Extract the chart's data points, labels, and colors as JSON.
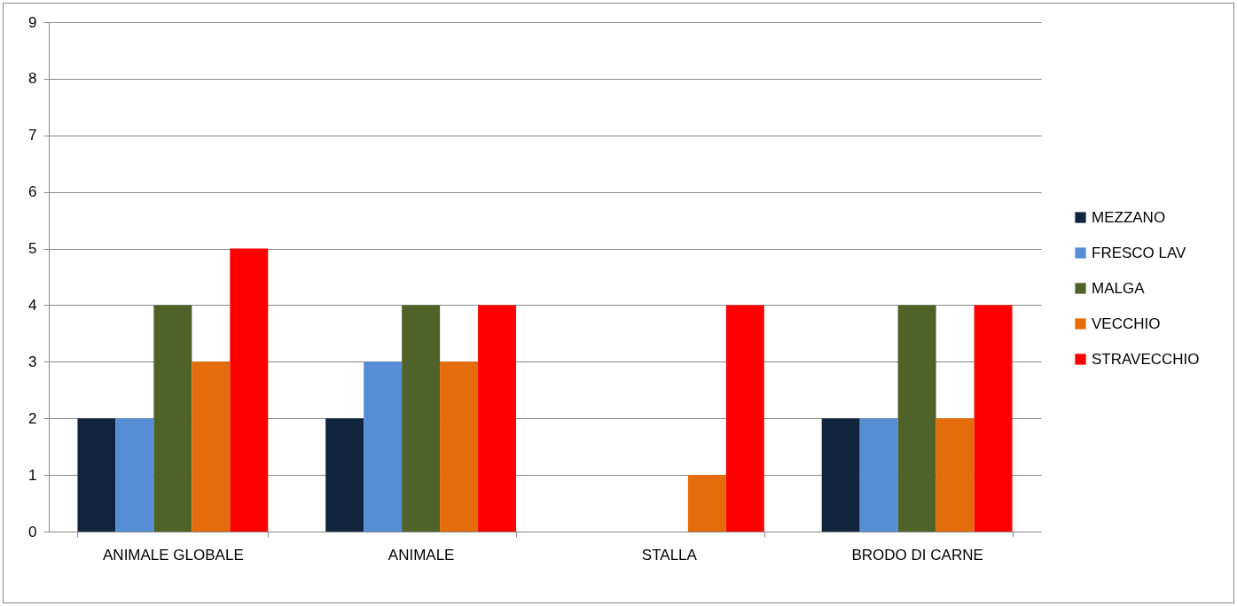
{
  "chart_data": {
    "type": "bar",
    "categories": [
      "ANIMALE GLOBALE",
      "ANIMALE",
      "STALLA",
      "BRODO DI CARNE"
    ],
    "series": [
      {
        "name": "MEZZANO",
        "color": "#10243e",
        "values": [
          2,
          2,
          0,
          2
        ]
      },
      {
        "name": "FRESCO LAV",
        "color": "#558ed5",
        "values": [
          2,
          3,
          0,
          2
        ]
      },
      {
        "name": "MALGA",
        "color": "#4f6228",
        "values": [
          4,
          4,
          0,
          4
        ]
      },
      {
        "name": "VECCHIO",
        "color": "#e46c0a",
        "values": [
          3,
          3,
          1,
          2
        ]
      },
      {
        "name": "STRAVECCHIO",
        "color": "#ff0000",
        "values": [
          5,
          4,
          4,
          4
        ]
      }
    ],
    "ylim": [
      0,
      9
    ],
    "yticks": [
      0,
      1,
      2,
      3,
      4,
      5,
      6,
      7,
      8,
      9
    ],
    "grid": "y",
    "legend": "right"
  }
}
